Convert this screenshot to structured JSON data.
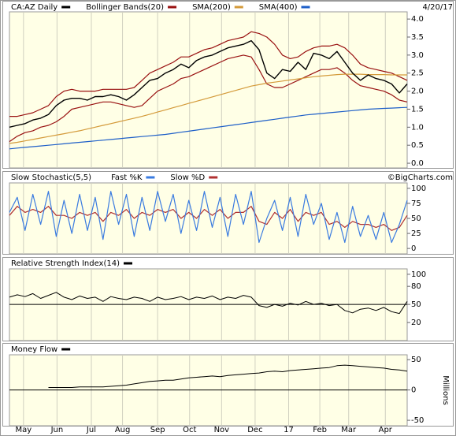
{
  "chart_data": [
    {
      "type": "line",
      "date": "4/20/17",
      "ylim": [
        -0.13,
        4.2
      ],
      "yticks": [
        {
          "value": 0,
          "label": "0.0"
        },
        {
          "value": 0.5,
          "label": "0.5"
        },
        {
          "value": 1,
          "label": "1.0"
        },
        {
          "value": 1.5,
          "label": "1.5"
        },
        {
          "value": 2,
          "label": "2.0"
        },
        {
          "value": 2.5,
          "label": "2.5"
        },
        {
          "value": 3,
          "label": "3.0"
        },
        {
          "value": 3.5,
          "label": "3.5"
        },
        {
          "value": 4,
          "label": "4.0"
        }
      ],
      "series": [
        {
          "name": "CA:AZ Daily",
          "color": "#000000",
          "values": [
            1.0,
            1.05,
            1.1,
            1.2,
            1.25,
            1.35,
            1.6,
            1.75,
            1.8,
            1.8,
            1.75,
            1.85,
            1.85,
            1.9,
            1.85,
            1.75,
            1.9,
            2.1,
            2.3,
            2.35,
            2.5,
            2.6,
            2.75,
            2.65,
            2.85,
            2.95,
            3.0,
            3.1,
            3.2,
            3.25,
            3.3,
            3.4,
            3.15,
            2.5,
            2.35,
            2.6,
            2.55,
            2.8,
            2.6,
            3.05,
            3.0,
            2.9,
            3.1,
            2.8,
            2.5,
            2.3,
            2.45,
            2.35,
            2.3,
            2.2,
            1.95,
            2.2
          ]
        },
        {
          "name": "SMA(200)",
          "color": "#d49a3a",
          "values": [
            0.55,
            0.58,
            0.62,
            0.66,
            0.7,
            0.74,
            0.78,
            0.82,
            0.86,
            0.9,
            0.95,
            1.0,
            1.05,
            1.1,
            1.15,
            1.2,
            1.25,
            1.3,
            1.36,
            1.42,
            1.48,
            1.54,
            1.6,
            1.66,
            1.72,
            1.78,
            1.84,
            1.9,
            1.96,
            2.02,
            2.08,
            2.14,
            2.18,
            2.22,
            2.25,
            2.28,
            2.31,
            2.34,
            2.37,
            2.4,
            2.42,
            2.44,
            2.46,
            2.47,
            2.47,
            2.47,
            2.46,
            2.46,
            2.46,
            2.45,
            2.45,
            2.45
          ]
        },
        {
          "name": "SMA(400)",
          "color": "#1e5fc8",
          "values": [
            0.4,
            0.42,
            0.44,
            0.46,
            0.48,
            0.5,
            0.52,
            0.54,
            0.56,
            0.58,
            0.6,
            0.62,
            0.64,
            0.66,
            0.68,
            0.7,
            0.72,
            0.74,
            0.76,
            0.78,
            0.8,
            0.83,
            0.86,
            0.89,
            0.92,
            0.95,
            0.98,
            1.01,
            1.04,
            1.07,
            1.1,
            1.13,
            1.16,
            1.19,
            1.22,
            1.25,
            1.28,
            1.31,
            1.34,
            1.36,
            1.38,
            1.4,
            1.42,
            1.44,
            1.46,
            1.48,
            1.5,
            1.51,
            1.52,
            1.53,
            1.54,
            1.55
          ]
        }
      ],
      "bands": {
        "name": "Bollinger Bands(20)",
        "color": "#991111",
        "upper": [
          1.3,
          1.3,
          1.35,
          1.4,
          1.5,
          1.6,
          1.85,
          2.0,
          2.05,
          2.0,
          2.0,
          2.0,
          2.05,
          2.05,
          2.05,
          2.05,
          2.1,
          2.3,
          2.5,
          2.6,
          2.7,
          2.8,
          2.95,
          2.95,
          3.05,
          3.15,
          3.2,
          3.3,
          3.4,
          3.45,
          3.5,
          3.65,
          3.6,
          3.5,
          3.3,
          3.0,
          2.9,
          2.95,
          3.1,
          3.2,
          3.25,
          3.25,
          3.3,
          3.2,
          3.0,
          2.75,
          2.65,
          2.6,
          2.55,
          2.5,
          2.4,
          2.3
        ],
        "lower": [
          0.6,
          0.75,
          0.85,
          0.9,
          1.0,
          1.05,
          1.15,
          1.3,
          1.5,
          1.55,
          1.6,
          1.65,
          1.7,
          1.7,
          1.65,
          1.6,
          1.55,
          1.6,
          1.8,
          2.0,
          2.1,
          2.2,
          2.35,
          2.4,
          2.5,
          2.6,
          2.7,
          2.8,
          2.9,
          2.95,
          3.0,
          2.95,
          2.6,
          2.2,
          2.1,
          2.1,
          2.2,
          2.3,
          2.4,
          2.5,
          2.6,
          2.6,
          2.65,
          2.5,
          2.3,
          2.15,
          2.1,
          2.05,
          2.0,
          1.9,
          1.75,
          1.7
        ]
      }
    },
    {
      "type": "line",
      "title": "Slow Stochastic(5,5)",
      "source": "©BigCharts.com",
      "ylim": [
        -9,
        109
      ],
      "yticks": [
        0,
        25,
        50,
        75,
        100
      ],
      "series": [
        {
          "name": "Fast %K",
          "color": "#3a7be0",
          "values": [
            60,
            85,
            30,
            90,
            40,
            95,
            20,
            80,
            25,
            90,
            30,
            85,
            15,
            95,
            40,
            90,
            20,
            85,
            30,
            95,
            45,
            90,
            25,
            80,
            30,
            95,
            35,
            85,
            20,
            90,
            40,
            95,
            10,
            50,
            80,
            30,
            85,
            20,
            90,
            40,
            75,
            15,
            60,
            10,
            70,
            20,
            55,
            15,
            60,
            10,
            40,
            80
          ]
        },
        {
          "name": "Slow %D",
          "color": "#b03030",
          "values": [
            55,
            70,
            60,
            65,
            60,
            70,
            55,
            55,
            50,
            60,
            55,
            60,
            45,
            60,
            55,
            65,
            50,
            60,
            55,
            65,
            60,
            65,
            50,
            60,
            50,
            65,
            55,
            65,
            50,
            60,
            60,
            70,
            45,
            40,
            60,
            50,
            65,
            45,
            60,
            55,
            60,
            40,
            45,
            35,
            45,
            40,
            40,
            35,
            40,
            30,
            35,
            55
          ]
        }
      ]
    },
    {
      "type": "line",
      "title": "Relative Strength Index(14)",
      "color": "#000000",
      "ylim": [
        -10,
        109
      ],
      "yticks": [
        20,
        50,
        80,
        100
      ],
      "reference_line": 50,
      "values": [
        62,
        66,
        63,
        68,
        60,
        65,
        70,
        62,
        58,
        64,
        60,
        62,
        55,
        63,
        60,
        58,
        62,
        60,
        55,
        62,
        58,
        60,
        63,
        58,
        62,
        60,
        64,
        58,
        62,
        60,
        65,
        62,
        48,
        45,
        50,
        47,
        52,
        49,
        55,
        50,
        52,
        48,
        50,
        40,
        36,
        42,
        44,
        40,
        45,
        38,
        35,
        55
      ]
    },
    {
      "type": "line",
      "title": "Money Flow",
      "color": "#000000",
      "y_label": "Millions",
      "ylim": [
        -59,
        58
      ],
      "yticks": [
        -50,
        0,
        50
      ],
      "reference_line": 0,
      "values": [
        null,
        null,
        null,
        null,
        null,
        4,
        4,
        4,
        4,
        5,
        5,
        5,
        5,
        6,
        7,
        8,
        10,
        12,
        14,
        15,
        16,
        16,
        18,
        20,
        21,
        22,
        23,
        22,
        24,
        25,
        26,
        27,
        28,
        30,
        31,
        30,
        32,
        33,
        34,
        35,
        36,
        37,
        40,
        41,
        40,
        39,
        38,
        37,
        36,
        34,
        33,
        31
      ],
      "xlim": [
        0,
        51
      ],
      "xticks": [
        {
          "value": 1.8,
          "label": "May"
        },
        {
          "value": 6.1,
          "label": "Jun"
        },
        {
          "value": 10.5,
          "label": "Jul"
        },
        {
          "value": 14.5,
          "label": "Aug"
        },
        {
          "value": 19,
          "label": "Sep"
        },
        {
          "value": 23.1,
          "label": "Oct"
        },
        {
          "value": 27.2,
          "label": "Nov"
        },
        {
          "value": 31.5,
          "label": "Dec"
        },
        {
          "value": 35.8,
          "label": "17"
        },
        {
          "value": 39.8,
          "label": "Feb"
        },
        {
          "value": 43.5,
          "label": "Mar"
        },
        {
          "value": 48.2,
          "label": "Apr"
        }
      ]
    }
  ]
}
